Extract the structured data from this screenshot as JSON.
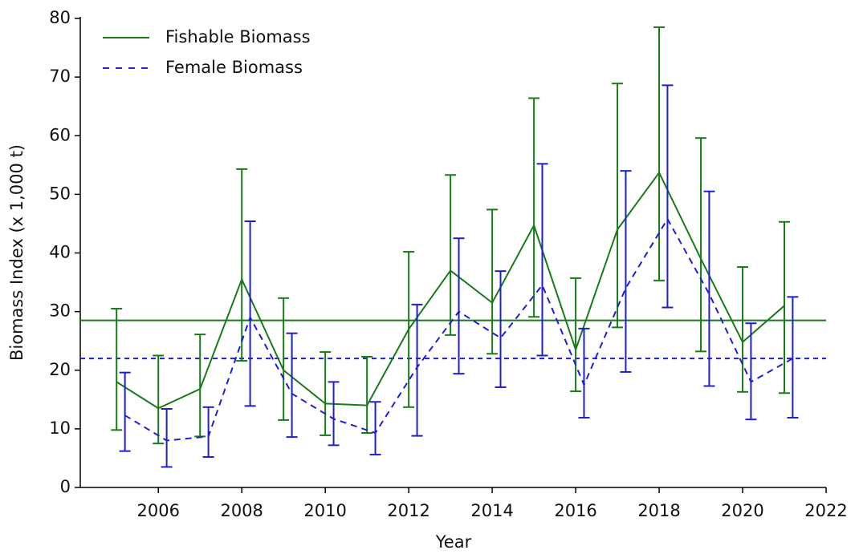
{
  "chart_data": {
    "type": "line",
    "xlabel": "Year",
    "ylabel": "Biomass Index (x 1,000 t)",
    "xlim": [
      2004.13,
      2022
    ],
    "ylim": [
      0,
      80
    ],
    "xticks": [
      2006,
      2008,
      2010,
      2012,
      2014,
      2016,
      2018,
      2020,
      2022
    ],
    "yticks": [
      0,
      10,
      20,
      30,
      40,
      50,
      60,
      70,
      80
    ],
    "legend": "upper left",
    "series": [
      {
        "name": "Fishable Biomass",
        "color": "#1a7a1a",
        "dashed": false,
        "x": [
          2005,
          2006,
          2007,
          2008,
          2009,
          2010,
          2011,
          2012,
          2013,
          2014,
          2015,
          2016,
          2017,
          2018,
          2019,
          2020,
          2021
        ],
        "values": [
          18,
          13.5,
          16.8,
          35.5,
          20,
          14.3,
          14,
          27,
          37,
          31.5,
          44.7,
          23.5,
          44,
          53.7,
          39,
          24.8,
          31
        ],
        "lower": [
          9.8,
          7.5,
          8.7,
          21.6,
          11.5,
          8.9,
          9.3,
          13.7,
          26,
          22.8,
          29.1,
          16.4,
          27.3,
          35.3,
          23.2,
          16.3,
          16.1
        ],
        "upper": [
          30.5,
          22.5,
          26.1,
          54.3,
          32.3,
          23.1,
          22.3,
          40.2,
          53.3,
          47.4,
          66.4,
          35.7,
          68.9,
          78.5,
          59.6,
          37.6,
          45.3
        ]
      },
      {
        "name": "Female Biomass",
        "color": "#1f1fcc",
        "dashed": true,
        "x": [
          2005.2,
          2006.2,
          2007.2,
          2008.2,
          2009.2,
          2010.2,
          2011.2,
          2012.2,
          2013.2,
          2014.2,
          2015.2,
          2016.2,
          2017.2,
          2018.2,
          2019.2,
          2020.2,
          2021.2
        ],
        "values": [
          12.3,
          8,
          8.7,
          29,
          16,
          11.7,
          9.3,
          20.5,
          30,
          25.5,
          34.5,
          17.5,
          34,
          45.8,
          33,
          18,
          22
        ],
        "lower": [
          6.2,
          3.5,
          5.2,
          13.9,
          8.6,
          7.2,
          5.6,
          8.8,
          19.4,
          17.1,
          22.5,
          11.9,
          19.7,
          30.7,
          17.3,
          11.6,
          11.9
        ],
        "upper": [
          19.6,
          13.4,
          13.7,
          45.4,
          26.3,
          18,
          14.6,
          31.2,
          42.5,
          36.9,
          55.2,
          27.1,
          54,
          68.6,
          50.5,
          28,
          32.5
        ]
      }
    ],
    "reference_lines": [
      {
        "value": 28.5,
        "color": "#1a7a1a",
        "dashed": false
      },
      {
        "value": 22,
        "color": "#1f1fcc",
        "dashed": true
      }
    ]
  }
}
